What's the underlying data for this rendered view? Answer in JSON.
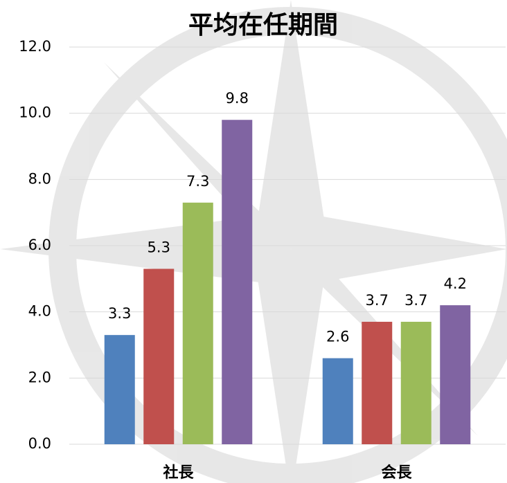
{
  "chart_data": {
    "type": "bar",
    "title": "平均在任期間",
    "categories": [
      "社長",
      "会長"
    ],
    "series": [
      {
        "color": "#4f81bd",
        "values": [
          3.3,
          2.6
        ]
      },
      {
        "color": "#c0504d",
        "values": [
          5.3,
          3.7
        ]
      },
      {
        "color": "#9bbb59",
        "values": [
          7.3,
          3.7
        ]
      },
      {
        "color": "#8064a2",
        "values": [
          9.8,
          4.2
        ]
      }
    ],
    "ylim": [
      0,
      12
    ],
    "yticks": [
      {
        "value": 0,
        "label": "0.0"
      },
      {
        "value": 2,
        "label": "2.0"
      },
      {
        "value": 4,
        "label": "4.0"
      },
      {
        "value": 6,
        "label": "6.0"
      },
      {
        "value": 8,
        "label": "8.0"
      },
      {
        "value": 10,
        "label": "10.0"
      },
      {
        "value": 12,
        "label": "12.0"
      }
    ],
    "grid": true
  }
}
